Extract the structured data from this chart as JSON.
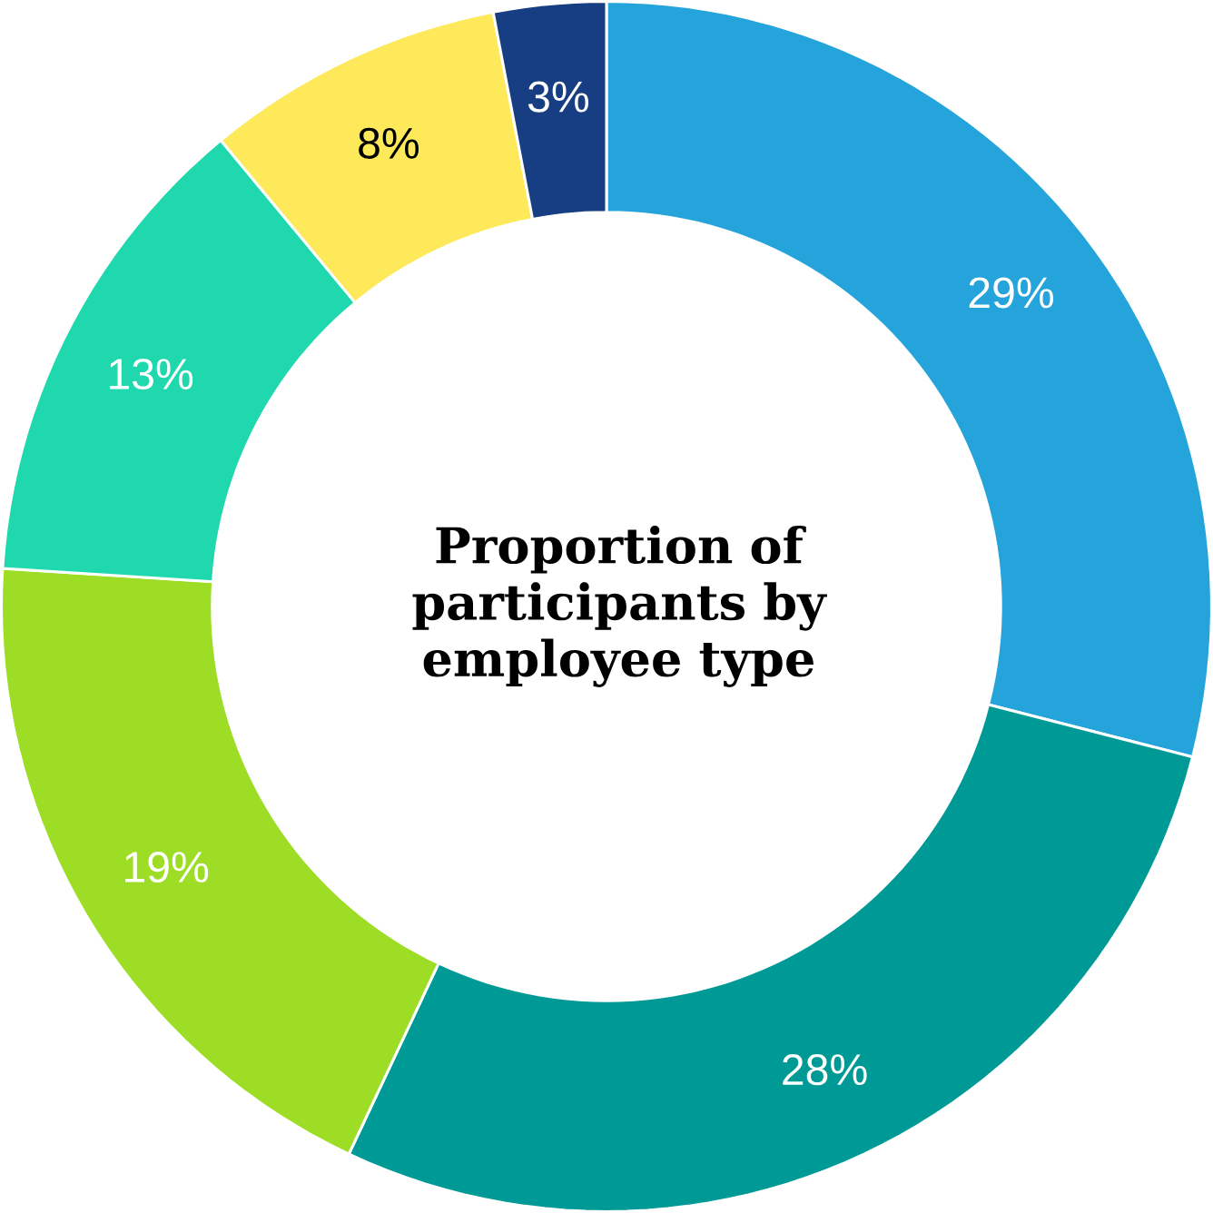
{
  "chart_data": {
    "type": "donut",
    "title": "Proportion of participants by employee type",
    "categories": [
      null,
      null,
      null,
      null,
      null,
      null
    ],
    "values": [
      29,
      28,
      19,
      13,
      8,
      3
    ],
    "value_labels": [
      "29%",
      "28%",
      "19%",
      "13%",
      "8%",
      "3%"
    ],
    "colors": [
      "#25a4dc",
      "#009a96",
      "#9ddd25",
      "#20d8ad",
      "#fde95a",
      "#173e82"
    ]
  }
}
